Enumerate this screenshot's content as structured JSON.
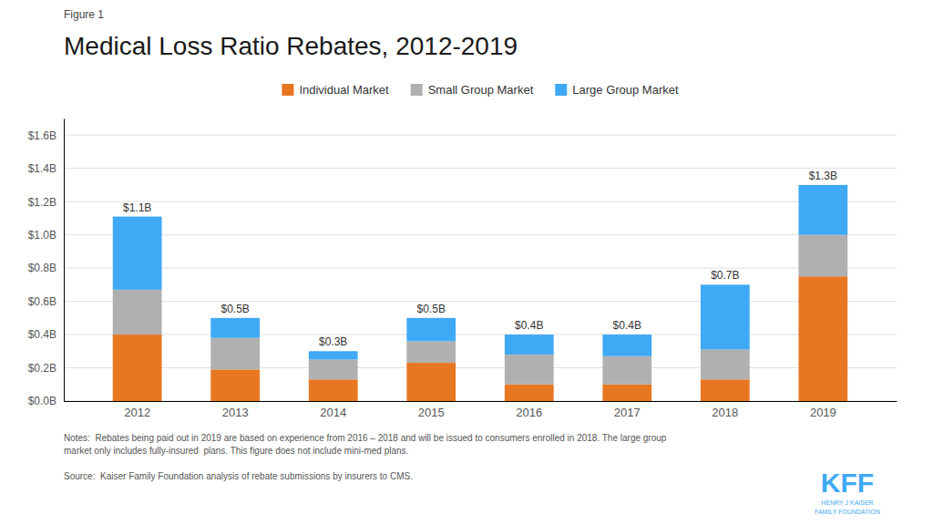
{
  "chart_data": {
    "type": "bar",
    "stacked": true,
    "figure_label": "Figure 1",
    "title": "Medical Loss Ratio Rebates, 2012-2019",
    "categories": [
      "2012",
      "2013",
      "2014",
      "2015",
      "2016",
      "2017",
      "2018",
      "2019"
    ],
    "series": [
      {
        "name": "Individual Market",
        "color": "#E87722",
        "values": [
          0.4,
          0.19,
          0.13,
          0.23,
          0.1,
          0.1,
          0.13,
          0.75
        ]
      },
      {
        "name": "Small Group Market",
        "color": "#B0B0B0",
        "values": [
          0.27,
          0.19,
          0.12,
          0.13,
          0.18,
          0.17,
          0.18,
          0.25
        ]
      },
      {
        "name": "Large Group Market",
        "color": "#3FA9F5",
        "values": [
          0.44,
          0.12,
          0.05,
          0.14,
          0.12,
          0.13,
          0.39,
          0.3
        ]
      }
    ],
    "totals": {
      "values": [
        1.11,
        0.5,
        0.3,
        0.5,
        0.4,
        0.4,
        0.7,
        1.3
      ],
      "value_labels": [
        "$1.1B",
        "$0.5B",
        "$0.3B",
        "$0.5B",
        "$0.4B",
        "$0.4B",
        "$0.7B",
        "$1.3B"
      ]
    },
    "ylim": [
      0,
      1.7
    ],
    "yticks": [
      {
        "value": 0.0,
        "label": "$0.0B"
      },
      {
        "value": 0.2,
        "label": "$0.2B"
      },
      {
        "value": 0.4,
        "label": "$0.4B"
      },
      {
        "value": 0.6,
        "label": "$0.6B"
      },
      {
        "value": 0.8,
        "label": "$0.8B"
      },
      {
        "value": 1.0,
        "label": "$1.0B"
      },
      {
        "value": 1.2,
        "label": "$1.2B"
      },
      {
        "value": 1.4,
        "label": "$1.4B"
      },
      {
        "value": 1.6,
        "label": "$1.6B"
      }
    ],
    "grid": true,
    "legend": "top",
    "notes": "Notes:  Rebates being paid out in 2019 are based on experience from 2016 – 2018 and will be issued to consumers enrolled in 2018. The large group\nmarket only includes fully-insured  plans. This figure does not include mini-med plans.",
    "source": "Source:  Kaiser Family Foundation analysis of rebate submissions by insurers to CMS.",
    "annotations": [
      "KFF",
      "HENRY J KAISER\nFAMILY FOUNDATION"
    ]
  }
}
